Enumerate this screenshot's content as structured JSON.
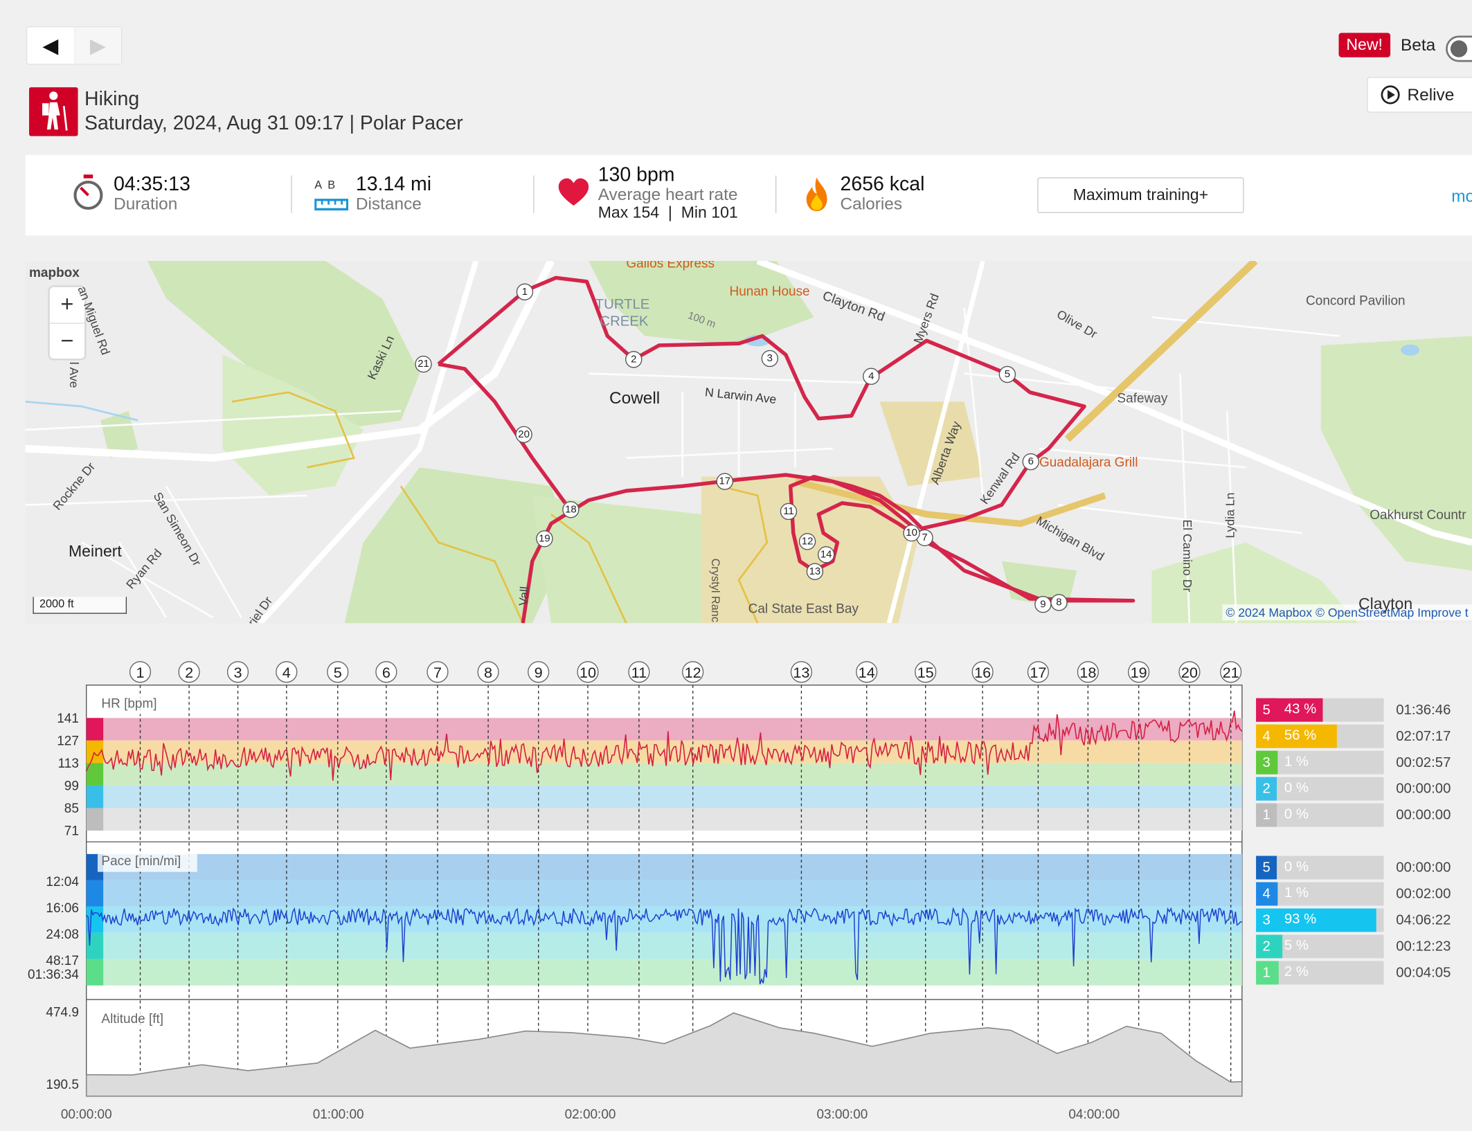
{
  "nav": {
    "prev_label": "◀",
    "next_label": "▶"
  },
  "header": {
    "new_badge": "New!",
    "beta_label": "Beta",
    "relive_label": "Relive",
    "sport": "Hiking",
    "subtitle": "Saturday, 2024, Aug 31 09:17 | Polar Pacer"
  },
  "stats": {
    "duration_value": "04:35:13",
    "duration_label": "Duration",
    "distance_ab": "A  B",
    "distance_value": "13.14 mi",
    "distance_label": "Distance",
    "hr_value": "130 bpm",
    "hr_label": "Average heart rate",
    "hr_maxmin": "Max 154  |  Min 101",
    "calories_value": "2656 kcal",
    "calories_label": "Calories",
    "training_button": "Maximum training+",
    "more_label": "mo"
  },
  "map": {
    "logo": "mapbox",
    "zoom_in": "+",
    "zoom_out": "−",
    "scale": "2000 ft",
    "attribution": "© 2024 Mapbox © OpenStreetMap Improve t",
    "labels": {
      "gallos": "Gallos Express",
      "hunan": "Hunan House",
      "clayton_rd": "Clayton Rd",
      "turtle": "TURTLE",
      "creek": "CREEK",
      "olive": "Olive Dr",
      "concord_pav": "Concord Pavilion",
      "cowell": "Cowell",
      "larwin": "N Larwin Ave",
      "safeway": "Safeway",
      "guad": "Guadalajara Grill",
      "alberta": "Alberta Way",
      "kenwal": "Kenwal Rd",
      "michigan": "Michigan Blvd",
      "elcamino": "El Camino Dr",
      "lydia": "Lydia Ln",
      "oakhurst": "Oakhurst Countr",
      "meinert": "Meinert",
      "rockne": "Rockne Dr",
      "sansimeon": "San Simeon Dr",
      "ryan": "Ryan Rd",
      "kaski": "Kaski Ln",
      "sanmiguel": "an Miguel Rd",
      "calstate": "Cal State East Bay",
      "crystyl": "Crystyl Ranc",
      "clayton": "Clayton",
      "myers": "Myers Rd",
      "m100": "100 m",
      "ave": "l Ave",
      "vall": "Vall",
      "riel": "riel Dr"
    },
    "laps": [
      "1",
      "2",
      "3",
      "4",
      "5",
      "6",
      "7",
      "8",
      "9",
      "10",
      "11",
      "12",
      "13",
      "14",
      "17",
      "18",
      "19",
      "20",
      "21"
    ]
  },
  "graph": {
    "lap_markers": [
      "1",
      "2",
      "3",
      "4",
      "5",
      "6",
      "7",
      "8",
      "9",
      "10",
      "11",
      "12",
      "13",
      "14",
      "15",
      "16",
      "17",
      "18",
      "19",
      "20",
      "21"
    ],
    "hr_title": "HR [bpm]",
    "hr_ticks": [
      "141",
      "127",
      "113",
      "99",
      "85",
      "71"
    ],
    "pace_title": "Pace [min/mi]",
    "pace_ticks": [
      "12:04",
      "16:06",
      "24:08",
      "48:17",
      "01:36:34"
    ],
    "alt_title": "Altitude [ft]",
    "alt_ticks": [
      "474.9",
      "190.5"
    ],
    "time_ticks": [
      "00:00:00",
      "01:00:00",
      "02:00:00",
      "03:00:00",
      "04:00:00"
    ],
    "hr_zones": [
      {
        "zone": "5",
        "pct": "43 %",
        "fraction": 0.43,
        "time": "01:36:46",
        "color": "#e0175a"
      },
      {
        "zone": "4",
        "pct": "56 %",
        "fraction": 0.56,
        "time": "02:07:17",
        "color": "#f5b800"
      },
      {
        "zone": "3",
        "pct": "1 %",
        "fraction": 0.01,
        "time": "00:02:57",
        "color": "#5fc93b"
      },
      {
        "zone": "2",
        "pct": "0 %",
        "fraction": 0.0,
        "time": "00:00:00",
        "color": "#38bfe8"
      },
      {
        "zone": "1",
        "pct": "0 %",
        "fraction": 0.0,
        "time": "00:00:00",
        "color": "#bdbdbd"
      }
    ],
    "pace_zones": [
      {
        "zone": "5",
        "pct": "0 %",
        "fraction": 0.0,
        "time": "00:00:00",
        "color": "#1565c0"
      },
      {
        "zone": "4",
        "pct": "1 %",
        "fraction": 0.01,
        "time": "00:02:00",
        "color": "#1e88e5"
      },
      {
        "zone": "3",
        "pct": "93 %",
        "fraction": 0.93,
        "time": "04:06:22",
        "color": "#15c5f0"
      },
      {
        "zone": "2",
        "pct": "5 %",
        "fraction": 0.05,
        "time": "00:12:23",
        "color": "#2ed3c0"
      },
      {
        "zone": "1",
        "pct": "2 %",
        "fraction": 0.02,
        "time": "00:04:05",
        "color": "#5bde8a"
      }
    ]
  }
}
